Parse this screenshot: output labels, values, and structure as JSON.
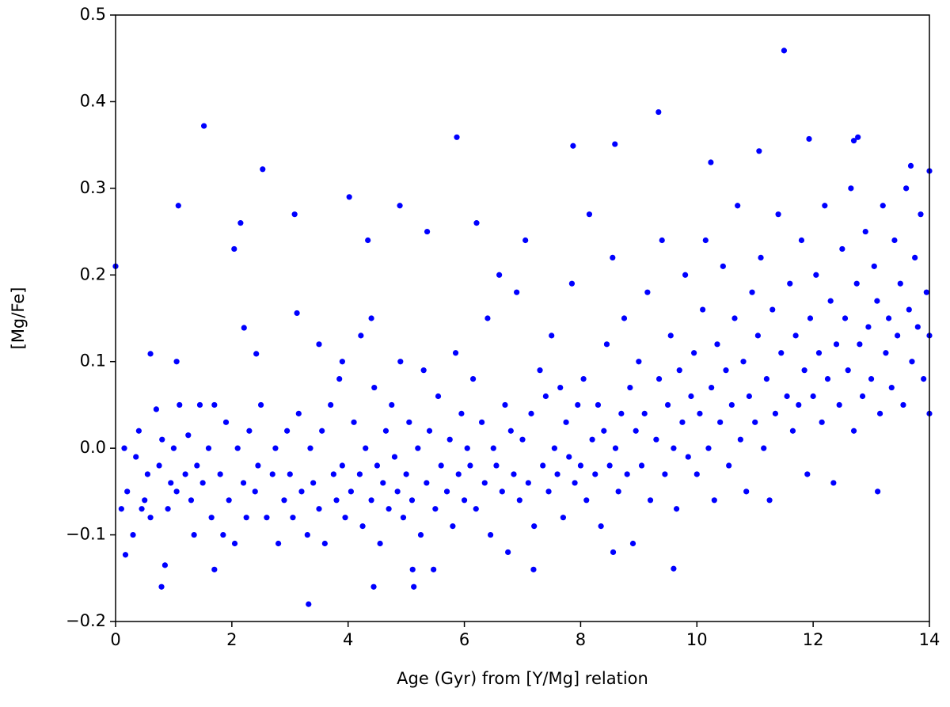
{
  "chart_data": {
    "type": "scatter",
    "x_label": "Age (Gyr) from [Y/Mg] relation",
    "y_label": "[Mg/Fe]",
    "color": "#0000ff",
    "xlim": [
      0,
      14
    ],
    "ylim": [
      -0.2,
      0.5
    ],
    "xticks": [
      0,
      2,
      4,
      6,
      8,
      10,
      12,
      14
    ],
    "yticks": [
      {
        "value": -0.2,
        "label": "−0.2"
      },
      {
        "value": -0.1,
        "label": "−0.1"
      },
      {
        "value": 0,
        "label": "0.0"
      },
      0.1,
      0.2,
      0.3,
      0.4,
      0.5
    ],
    "grid": false,
    "x": [
      0,
      1.08,
      1.52,
      2.04,
      2.15,
      2.53,
      3.08,
      3.12,
      4.02,
      4.34,
      4.89,
      5.36,
      5.87,
      6.21,
      7.87,
      8.59,
      9.34,
      11.5,
      12.77,
      12.7,
      11.93,
      10.24,
      11.07,
      13.68,
      14,
      3.32,
      0.79,
      0.17,
      0.85,
      1.7,
      4.44,
      5.13,
      5.11,
      5.47,
      7.19,
      9.6,
      8.56,
      1.05,
      0.6,
      2.42,
      2.21,
      3.5,
      3.9,
      4.22,
      4.4,
      13.11,
      14,
      0.1,
      0.15,
      0.2,
      0.3,
      0.35,
      0.4,
      0.45,
      0.5,
      0.55,
      0.6,
      0.7,
      0.75,
      0.8,
      0.9,
      0.95,
      1.0,
      1.05,
      1.1,
      1.2,
      1.25,
      1.3,
      1.35,
      1.4,
      1.45,
      1.5,
      1.6,
      1.65,
      1.7,
      1.8,
      1.85,
      1.9,
      1.95,
      2.05,
      2.1,
      2.2,
      2.25,
      2.3,
      2.4,
      2.45,
      2.5,
      2.6,
      2.7,
      2.75,
      2.8,
      2.9,
      2.95,
      3.0,
      3.05,
      3.15,
      3.2,
      3.3,
      3.35,
      3.4,
      3.5,
      3.55,
      3.6,
      3.7,
      3.75,
      3.8,
      3.85,
      3.9,
      3.95,
      4.05,
      4.1,
      4.2,
      4.25,
      4.3,
      4.4,
      4.45,
      4.5,
      4.55,
      4.6,
      4.65,
      4.7,
      4.75,
      4.8,
      4.85,
      4.9,
      4.95,
      5.0,
      5.05,
      5.1,
      5.2,
      5.25,
      5.3,
      5.35,
      5.4,
      5.5,
      5.55,
      5.6,
      5.7,
      5.75,
      5.8,
      5.85,
      5.9,
      5.95,
      6.0,
      6.05,
      6.1,
      6.15,
      6.2,
      6.3,
      6.35,
      6.4,
      6.45,
      6.5,
      6.55,
      6.6,
      6.65,
      6.7,
      6.75,
      6.8,
      6.85,
      6.9,
      6.95,
      7.0,
      7.05,
      7.1,
      7.15,
      7.2,
      7.3,
      7.35,
      7.4,
      7.45,
      7.5,
      7.55,
      7.6,
      7.65,
      7.7,
      7.75,
      7.8,
      7.85,
      7.9,
      7.95,
      8.0,
      8.05,
      8.1,
      8.15,
      8.2,
      8.25,
      8.3,
      8.35,
      8.4,
      8.45,
      8.5,
      8.55,
      8.6,
      8.65,
      8.7,
      8.75,
      8.8,
      8.85,
      8.9,
      8.95,
      9.0,
      9.05,
      9.1,
      9.15,
      9.2,
      9.3,
      9.35,
      9.4,
      9.45,
      9.5,
      9.55,
      9.6,
      9.65,
      9.7,
      9.75,
      9.8,
      9.85,
      9.9,
      9.95,
      10.0,
      10.05,
      10.1,
      10.15,
      10.2,
      10.25,
      10.3,
      10.35,
      10.4,
      10.45,
      10.5,
      10.55,
      10.6,
      10.65,
      10.7,
      10.75,
      10.8,
      10.85,
      10.9,
      10.95,
      11.0,
      11.05,
      11.1,
      11.15,
      11.2,
      11.25,
      11.3,
      11.35,
      11.4,
      11.45,
      11.55,
      11.6,
      11.65,
      11.7,
      11.75,
      11.8,
      11.85,
      11.9,
      11.95,
      12.0,
      12.05,
      12.1,
      12.15,
      12.2,
      12.25,
      12.3,
      12.35,
      12.4,
      12.45,
      12.5,
      12.55,
      12.6,
      12.65,
      12.7,
      12.75,
      12.8,
      12.85,
      12.9,
      12.95,
      13.0,
      13.05,
      13.1,
      13.15,
      13.2,
      13.25,
      13.3,
      13.35,
      13.4,
      13.45,
      13.5,
      13.55,
      13.6,
      13.65,
      13.7,
      13.75,
      13.8,
      13.85,
      13.9,
      13.95,
      14.0
    ],
    "values": [
      0.21,
      0.28,
      0.372,
      0.23,
      0.26,
      0.322,
      0.27,
      0.156,
      0.29,
      0.24,
      0.28,
      0.25,
      0.359,
      0.26,
      0.349,
      0.351,
      0.388,
      0.459,
      0.359,
      0.355,
      0.357,
      0.33,
      0.343,
      0.326,
      0.32,
      -0.18,
      -0.16,
      -0.123,
      -0.135,
      -0.14,
      -0.16,
      -0.16,
      -0.14,
      -0.14,
      -0.14,
      -0.139,
      -0.12,
      0.1,
      0.109,
      0.109,
      0.139,
      0.12,
      0.1,
      0.13,
      0.15,
      -0.05,
      0.04,
      -0.07,
      0.0,
      -0.05,
      -0.1,
      -0.01,
      0.02,
      -0.07,
      -0.06,
      -0.03,
      -0.08,
      0.045,
      -0.02,
      0.01,
      -0.07,
      -0.04,
      0.0,
      -0.05,
      0.05,
      -0.03,
      0.015,
      -0.06,
      -0.1,
      -0.02,
      0.05,
      -0.04,
      0.0,
      -0.08,
      0.05,
      -0.03,
      -0.1,
      0.03,
      -0.06,
      -0.11,
      0.0,
      -0.04,
      -0.08,
      0.02,
      -0.05,
      -0.02,
      0.05,
      -0.08,
      -0.03,
      0.0,
      -0.11,
      -0.06,
      0.02,
      -0.03,
      -0.08,
      0.04,
      -0.05,
      -0.1,
      0.0,
      -0.04,
      -0.07,
      0.02,
      -0.11,
      0.05,
      -0.03,
      -0.06,
      0.08,
      -0.02,
      -0.08,
      -0.05,
      0.03,
      -0.03,
      -0.09,
      0.0,
      -0.06,
      0.07,
      -0.02,
      -0.11,
      -0.04,
      0.02,
      -0.07,
      0.05,
      -0.01,
      -0.05,
      0.1,
      -0.08,
      -0.03,
      0.03,
      -0.06,
      0.0,
      -0.1,
      0.09,
      -0.04,
      0.02,
      -0.07,
      0.06,
      -0.02,
      -0.05,
      0.01,
      -0.09,
      0.11,
      -0.03,
      0.04,
      -0.06,
      0.0,
      -0.02,
      0.08,
      -0.07,
      0.03,
      -0.04,
      0.15,
      -0.1,
      0.0,
      -0.02,
      0.2,
      -0.05,
      0.05,
      -0.12,
      0.02,
      -0.03,
      0.18,
      -0.06,
      0.01,
      0.24,
      -0.04,
      0.04,
      -0.09,
      0.09,
      -0.02,
      0.06,
      -0.05,
      0.13,
      0.0,
      -0.03,
      0.07,
      -0.08,
      0.03,
      -0.01,
      0.19,
      -0.04,
      0.05,
      -0.02,
      0.08,
      -0.06,
      0.27,
      0.01,
      -0.03,
      0.05,
      -0.09,
      0.02,
      0.12,
      -0.02,
      0.22,
      0.0,
      -0.05,
      0.04,
      0.15,
      -0.03,
      0.07,
      -0.11,
      0.02,
      0.1,
      -0.02,
      0.04,
      0.18,
      -0.06,
      0.01,
      0.08,
      0.24,
      -0.03,
      0.05,
      0.13,
      0.0,
      -0.07,
      0.09,
      0.03,
      0.2,
      -0.01,
      0.06,
      0.11,
      -0.03,
      0.04,
      0.16,
      0.24,
      0.0,
      0.07,
      -0.06,
      0.12,
      0.03,
      0.21,
      0.09,
      -0.02,
      0.05,
      0.15,
      0.28,
      0.01,
      0.1,
      -0.05,
      0.06,
      0.18,
      0.03,
      0.13,
      0.22,
      0.0,
      0.08,
      -0.06,
      0.16,
      0.04,
      0.27,
      0.11,
      0.06,
      0.19,
      0.02,
      0.13,
      0.05,
      0.24,
      0.09,
      -0.03,
      0.15,
      0.06,
      0.2,
      0.11,
      0.03,
      0.28,
      0.08,
      0.17,
      -0.04,
      0.12,
      0.05,
      0.23,
      0.15,
      0.09,
      0.3,
      0.02,
      0.19,
      0.12,
      0.06,
      0.25,
      0.14,
      0.08,
      0.21,
      0.17,
      0.04,
      0.28,
      0.11,
      0.15,
      0.07,
      0.24,
      0.13,
      0.19,
      0.05,
      0.3,
      0.16,
      0.1,
      0.22,
      0.14,
      0.27,
      0.08,
      0.18,
      0.13
    ]
  }
}
